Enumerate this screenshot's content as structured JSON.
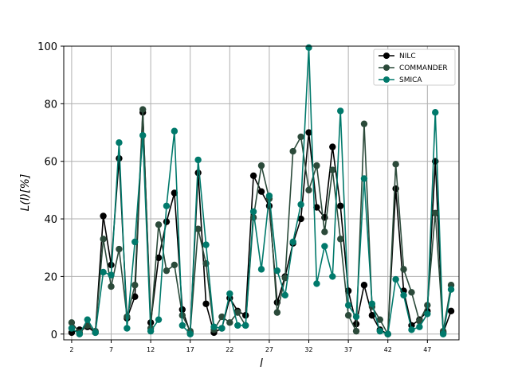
{
  "chart_data": {
    "type": "line",
    "xlabel": "l",
    "ylabel": "L(l)[%]",
    "xlim": [
      1,
      51
    ],
    "ylim": [
      -2,
      100
    ],
    "xticks": [
      2,
      7,
      12,
      17,
      22,
      27,
      32,
      37,
      42,
      47
    ],
    "yticks": [
      0,
      20,
      40,
      60,
      80,
      100
    ],
    "grid": true,
    "legend_position": "top-right",
    "x": [
      2,
      3,
      4,
      5,
      6,
      7,
      8,
      9,
      10,
      11,
      12,
      13,
      14,
      15,
      16,
      17,
      18,
      19,
      20,
      21,
      22,
      23,
      24,
      25,
      26,
      27,
      28,
      29,
      30,
      31,
      32,
      33,
      34,
      35,
      36,
      37,
      38,
      39,
      40,
      41,
      42,
      43,
      44,
      45,
      46,
      47,
      48,
      49,
      50
    ],
    "series": [
      {
        "name": "NILC",
        "color": "#000000",
        "values": [
          0.5,
          1.5,
          2.5,
          0.5,
          41,
          24,
          61,
          5.5,
          13,
          77,
          4,
          26.5,
          39,
          49,
          8.5,
          0.5,
          56,
          10.5,
          0.5,
          2,
          12.5,
          8,
          6.5,
          55,
          49.5,
          44.5,
          11,
          20,
          31.5,
          40,
          70,
          44,
          40.5,
          65,
          44.5,
          15,
          3.5,
          17,
          6.5,
          1.5,
          0,
          50.5,
          15,
          3,
          5,
          8,
          60,
          0.5,
          8
        ]
      },
      {
        "name": "COMMANDER",
        "color": "#2b4a3a",
        "values": [
          4,
          0.5,
          3,
          1,
          33,
          16.5,
          29.5,
          6,
          17,
          78,
          2,
          38,
          22,
          24,
          6.5,
          1,
          36.5,
          24.5,
          1.5,
          6,
          4,
          7.5,
          3,
          40.5,
          58.5,
          47,
          7.5,
          19.5,
          63.5,
          68.5,
          50,
          58.5,
          35.5,
          57,
          33,
          6.5,
          1,
          73,
          9.5,
          5,
          0,
          59,
          22.5,
          14.5,
          4.5,
          10,
          42,
          1,
          17
        ]
      },
      {
        "name": "SMICA",
        "color": "#00796b",
        "values": [
          2,
          0,
          5,
          0.5,
          21.5,
          20.5,
          66.5,
          2,
          32,
          69,
          1,
          5,
          44.5,
          70.5,
          3,
          0,
          60.5,
          31,
          2.5,
          2,
          14,
          3,
          3,
          42.5,
          22.5,
          48,
          22,
          13.5,
          32,
          45,
          99.5,
          17.5,
          30.5,
          20,
          77.5,
          10,
          6,
          54,
          10.5,
          1,
          0,
          19,
          13.5,
          1.5,
          2.5,
          7,
          77,
          0,
          15.5
        ]
      }
    ]
  }
}
